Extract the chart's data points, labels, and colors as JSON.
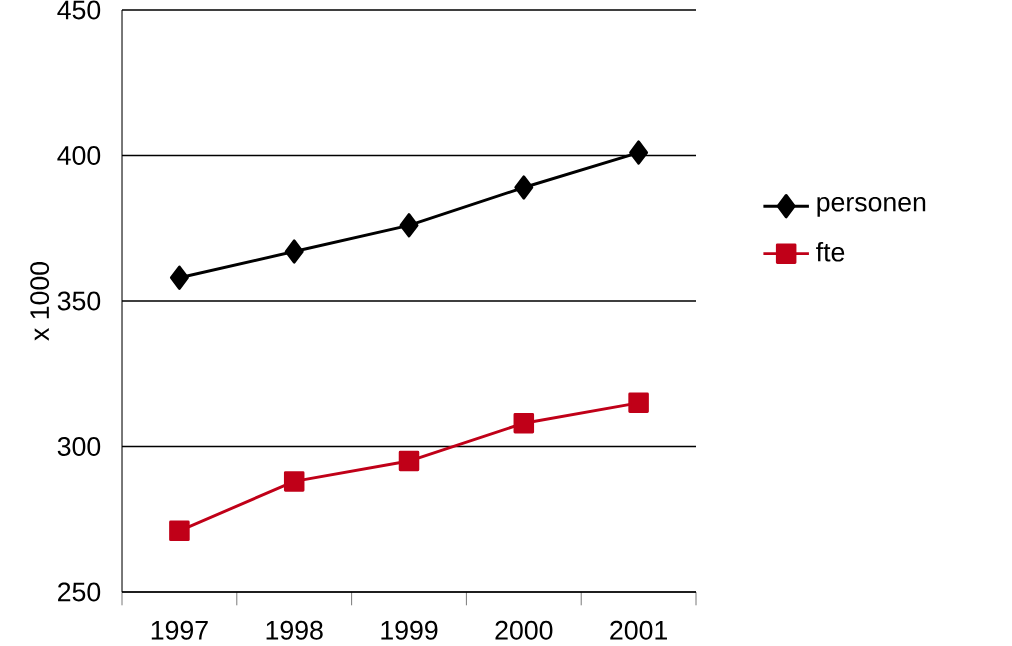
{
  "chart_data": {
    "type": "line",
    "ylabel": "x 1000",
    "categories": [
      "1997",
      "1998",
      "1999",
      "2000",
      "2001"
    ],
    "series": [
      {
        "name": "personen",
        "color": "#000000",
        "marker": "diamond",
        "values": [
          358,
          367,
          376,
          389,
          401
        ]
      },
      {
        "name": "fte",
        "color": "#c00018",
        "marker": "square",
        "values": [
          271,
          288,
          295,
          308,
          315
        ]
      }
    ],
    "ylim": [
      250,
      450
    ],
    "yticks": [
      250,
      300,
      350,
      400,
      450
    ],
    "grid": "y",
    "legend": "right"
  }
}
